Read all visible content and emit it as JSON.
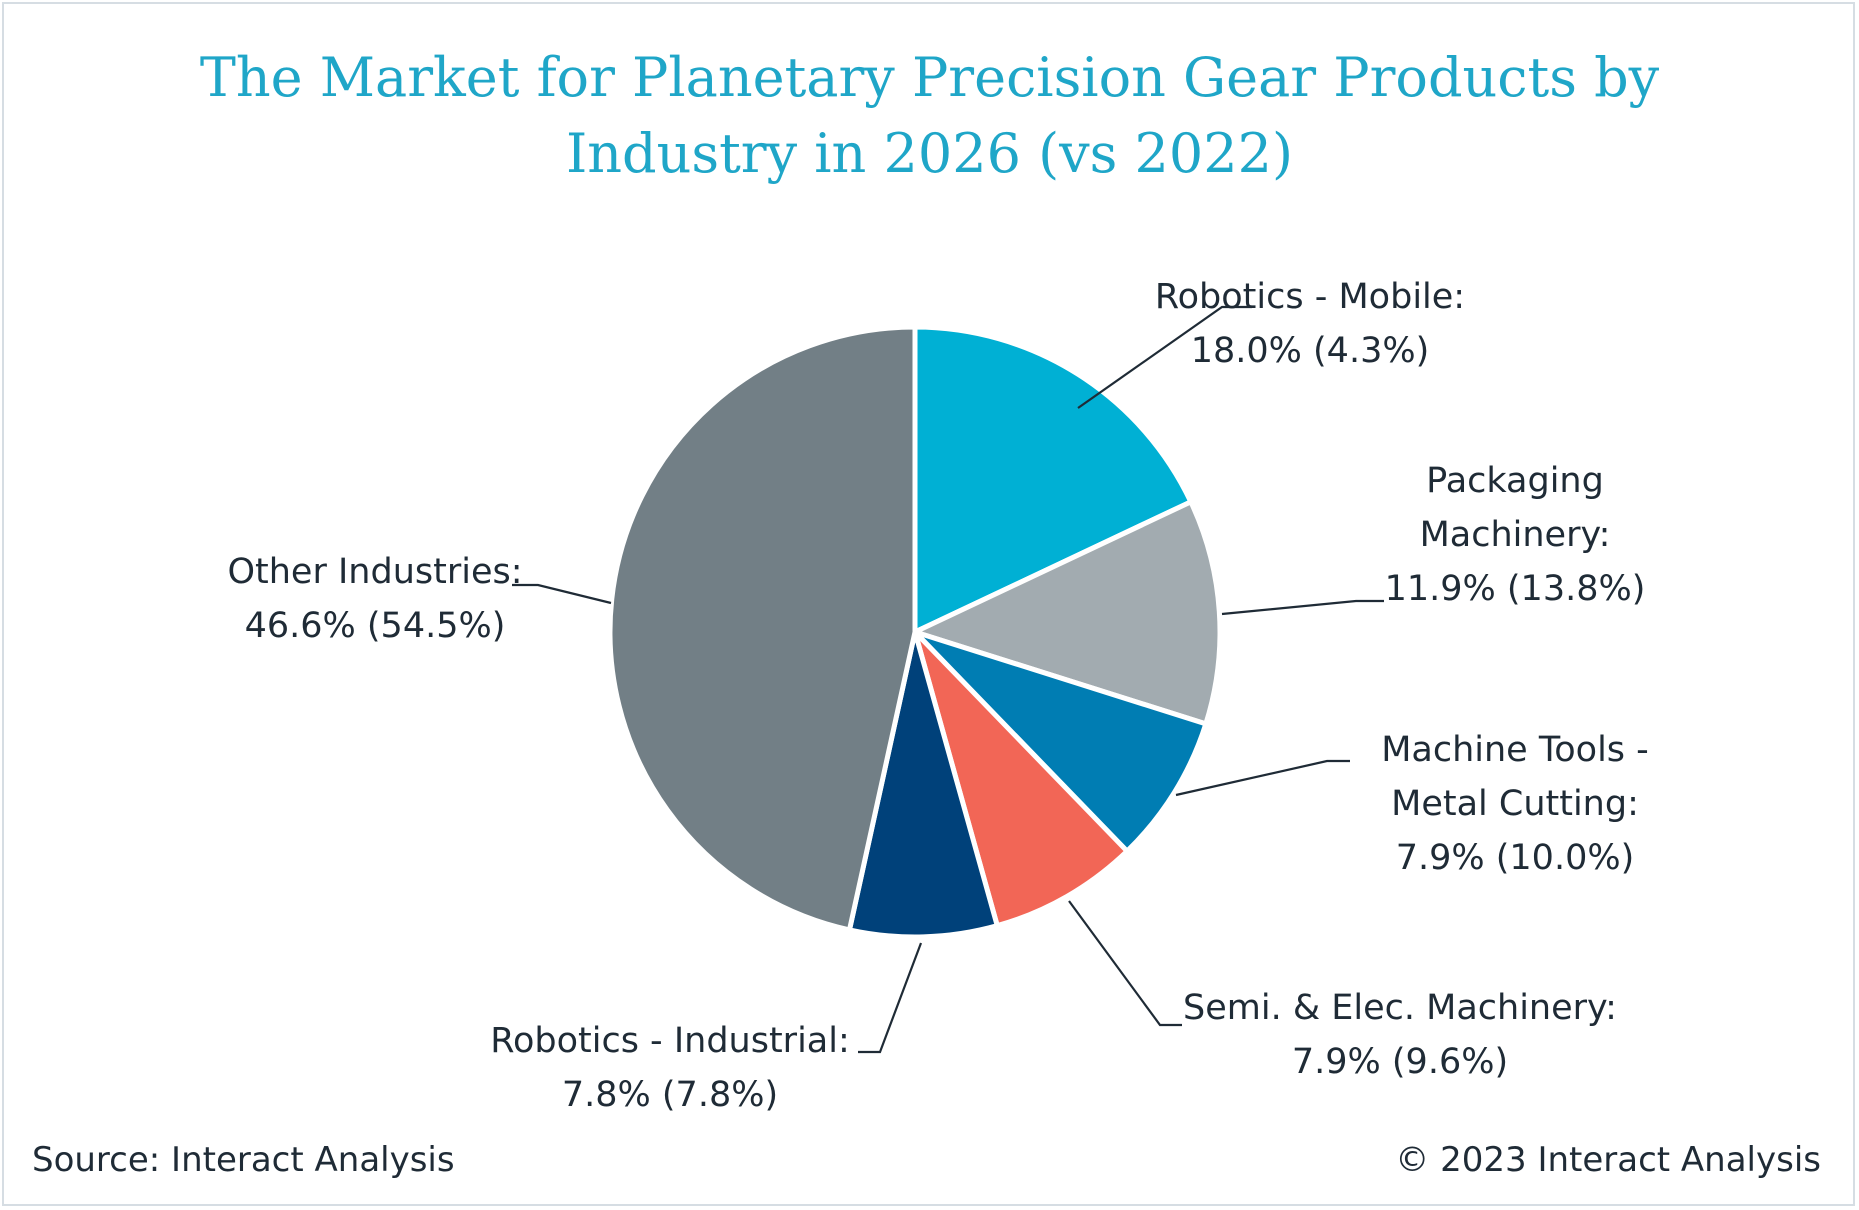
{
  "chart_data": {
    "type": "pie",
    "title_lines": [
      "The Market for Planetary Precision Gear Products by",
      "Industry in 2026 (vs 2022)"
    ],
    "slices": [
      {
        "name": "Robotics - Mobile",
        "value": 18.0,
        "value_2022": 4.3,
        "color": "#00b0d4",
        "label_lines": [
          "Robotics - Mobile:",
          "18.0% (4.3%)"
        ]
      },
      {
        "name": "Packaging Machinery",
        "value": 11.9,
        "value_2022": 13.8,
        "color": "#a2abb0",
        "label_lines": [
          "Packaging",
          "Machinery:",
          "11.9% (13.8%)"
        ]
      },
      {
        "name": "Machine Tools - Metal Cutting",
        "value": 7.9,
        "value_2022": 10.0,
        "color": "#007db3",
        "label_lines": [
          "Machine Tools -",
          "Metal Cutting:",
          "7.9% (10.0%)"
        ]
      },
      {
        "name": "Semi. & Elec. Machinery",
        "value": 7.9,
        "value_2022": 9.6,
        "color": "#f26656",
        "label_lines": [
          "Semi. & Elec. Machinery:",
          "7.9% (9.6%)"
        ]
      },
      {
        "name": "Robotics - Industrial",
        "value": 7.8,
        "value_2022": 7.8,
        "color": "#00417a",
        "label_lines": [
          "Robotics - Industrial:",
          "7.8% (7.8%)"
        ]
      },
      {
        "name": "Other Industries",
        "value": 46.6,
        "value_2022": 54.5,
        "color": "#727f86",
        "label_lines": [
          "Other Industries:",
          "46.6% (54.5%)"
        ]
      }
    ],
    "start_angle": "12 o'clock",
    "direction": "clockwise",
    "legend": "none"
  },
  "footer": {
    "source": "Source: Interact Analysis",
    "copyright": "© 2023 Interact Analysis"
  }
}
